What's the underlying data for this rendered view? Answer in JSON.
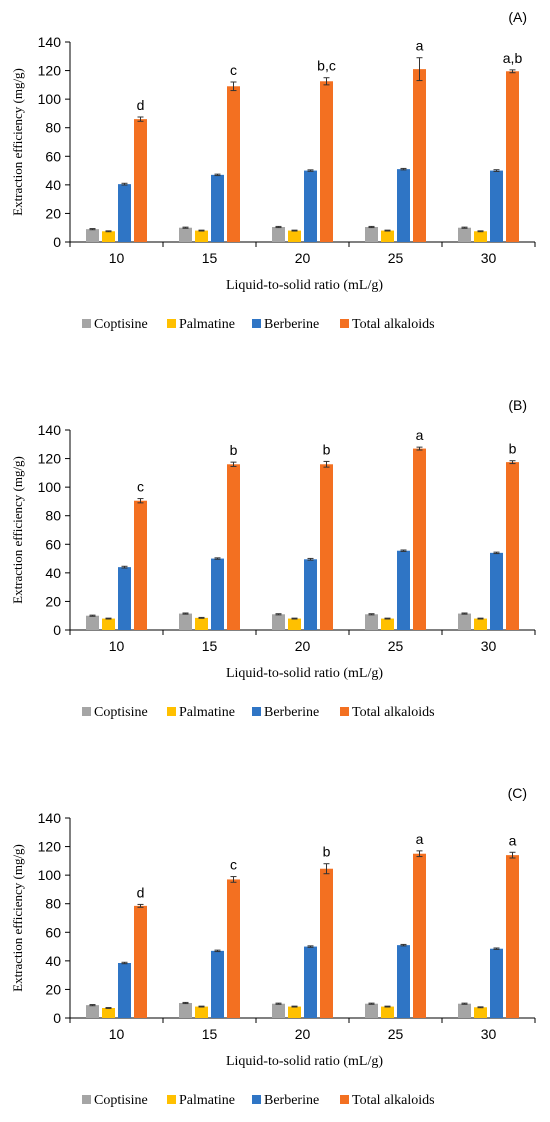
{
  "chart_data": [
    {
      "type": "bar",
      "panel_label": "(A)",
      "categories": [
        "10",
        "15",
        "20",
        "25",
        "30"
      ],
      "xlabel": "Liquid-to-solid ratio (mL/g)",
      "ylabel": "Extraction efficiency (mg/g)",
      "ylim": [
        0,
        140
      ],
      "yticks": [
        0,
        20,
        40,
        60,
        80,
        100,
        120,
        140
      ],
      "grid": false,
      "legend_position": "bottom",
      "series": [
        {
          "name": "Coptisine",
          "color": "#a5a5a5",
          "values": [
            9,
            10,
            10.5,
            10.5,
            10
          ],
          "errors": [
            0.4,
            0.4,
            0.4,
            0.4,
            0.4
          ]
        },
        {
          "name": "Palmatine",
          "color": "#ffc000",
          "values": [
            7.5,
            8,
            8,
            8,
            7.5
          ],
          "errors": [
            0.3,
            0.3,
            0.3,
            0.3,
            0.3
          ]
        },
        {
          "name": "Berberine",
          "color": "#2f75c5",
          "values": [
            40.5,
            47,
            50,
            51,
            50
          ],
          "errors": [
            0.6,
            0.5,
            0.5,
            0.5,
            0.6
          ]
        },
        {
          "name": "Total alkaloids",
          "color": "#f37021",
          "values": [
            86,
            109,
            112.5,
            121,
            119.5
          ],
          "errors": [
            1.5,
            3,
            2.5,
            8,
            1
          ],
          "labels": [
            "d",
            "c",
            "b,c",
            "a",
            "a,b"
          ]
        }
      ]
    },
    {
      "type": "bar",
      "panel_label": "(B)",
      "categories": [
        "10",
        "15",
        "20",
        "25",
        "30"
      ],
      "xlabel": "Liquid-to-solid ratio (mL/g)",
      "ylabel": "Extraction efficiency (mg/g)",
      "ylim": [
        0,
        140
      ],
      "yticks": [
        0,
        20,
        40,
        60,
        80,
        100,
        120,
        140
      ],
      "grid": false,
      "legend_position": "bottom",
      "series": [
        {
          "name": "Coptisine",
          "color": "#a5a5a5",
          "values": [
            10,
            11.5,
            11,
            11,
            11.5
          ],
          "errors": [
            0.4,
            0.4,
            0.4,
            0.4,
            0.4
          ]
        },
        {
          "name": "Palmatine",
          "color": "#ffc000",
          "values": [
            8,
            8.5,
            8,
            8,
            8
          ],
          "errors": [
            0.3,
            0.3,
            0.3,
            0.3,
            0.3
          ]
        },
        {
          "name": "Berberine",
          "color": "#2f75c5",
          "values": [
            44,
            50,
            49.5,
            55.5,
            54
          ],
          "errors": [
            0.6,
            0.5,
            0.6,
            0.5,
            0.5
          ]
        },
        {
          "name": "Total alkaloids",
          "color": "#f37021",
          "values": [
            90.5,
            116,
            116,
            127,
            117.5
          ],
          "errors": [
            1.5,
            1.5,
            2,
            1,
            1
          ],
          "labels": [
            "c",
            "b",
            "b",
            "a",
            "b"
          ]
        }
      ]
    },
    {
      "type": "bar",
      "panel_label": "(C)",
      "categories": [
        "10",
        "15",
        "20",
        "25",
        "30"
      ],
      "xlabel": "Liquid-to-solid ratio (mL/g)",
      "ylabel": "Extraction efficiency (mg/g)",
      "ylim": [
        0,
        140
      ],
      "yticks": [
        0,
        20,
        40,
        60,
        80,
        100,
        120,
        140
      ],
      "grid": false,
      "legend_position": "bottom",
      "series": [
        {
          "name": "Coptisine",
          "color": "#a5a5a5",
          "values": [
            9,
            10.5,
            10,
            10,
            10
          ],
          "errors": [
            0.4,
            0.4,
            0.4,
            0.4,
            0.4
          ]
        },
        {
          "name": "Palmatine",
          "color": "#ffc000",
          "values": [
            7,
            8,
            8,
            8,
            7.5
          ],
          "errors": [
            0.3,
            0.3,
            0.3,
            0.3,
            0.3
          ]
        },
        {
          "name": "Berberine",
          "color": "#2f75c5",
          "values": [
            38.5,
            47,
            50,
            51,
            48.5
          ],
          "errors": [
            0.5,
            0.5,
            0.5,
            0.5,
            0.5
          ]
        },
        {
          "name": "Total alkaloids",
          "color": "#f37021",
          "values": [
            78.5,
            97,
            104.5,
            115,
            114
          ],
          "errors": [
            1,
            2,
            3.5,
            2,
            2
          ],
          "labels": [
            "d",
            "c",
            "b",
            "a",
            "a"
          ]
        }
      ]
    }
  ]
}
